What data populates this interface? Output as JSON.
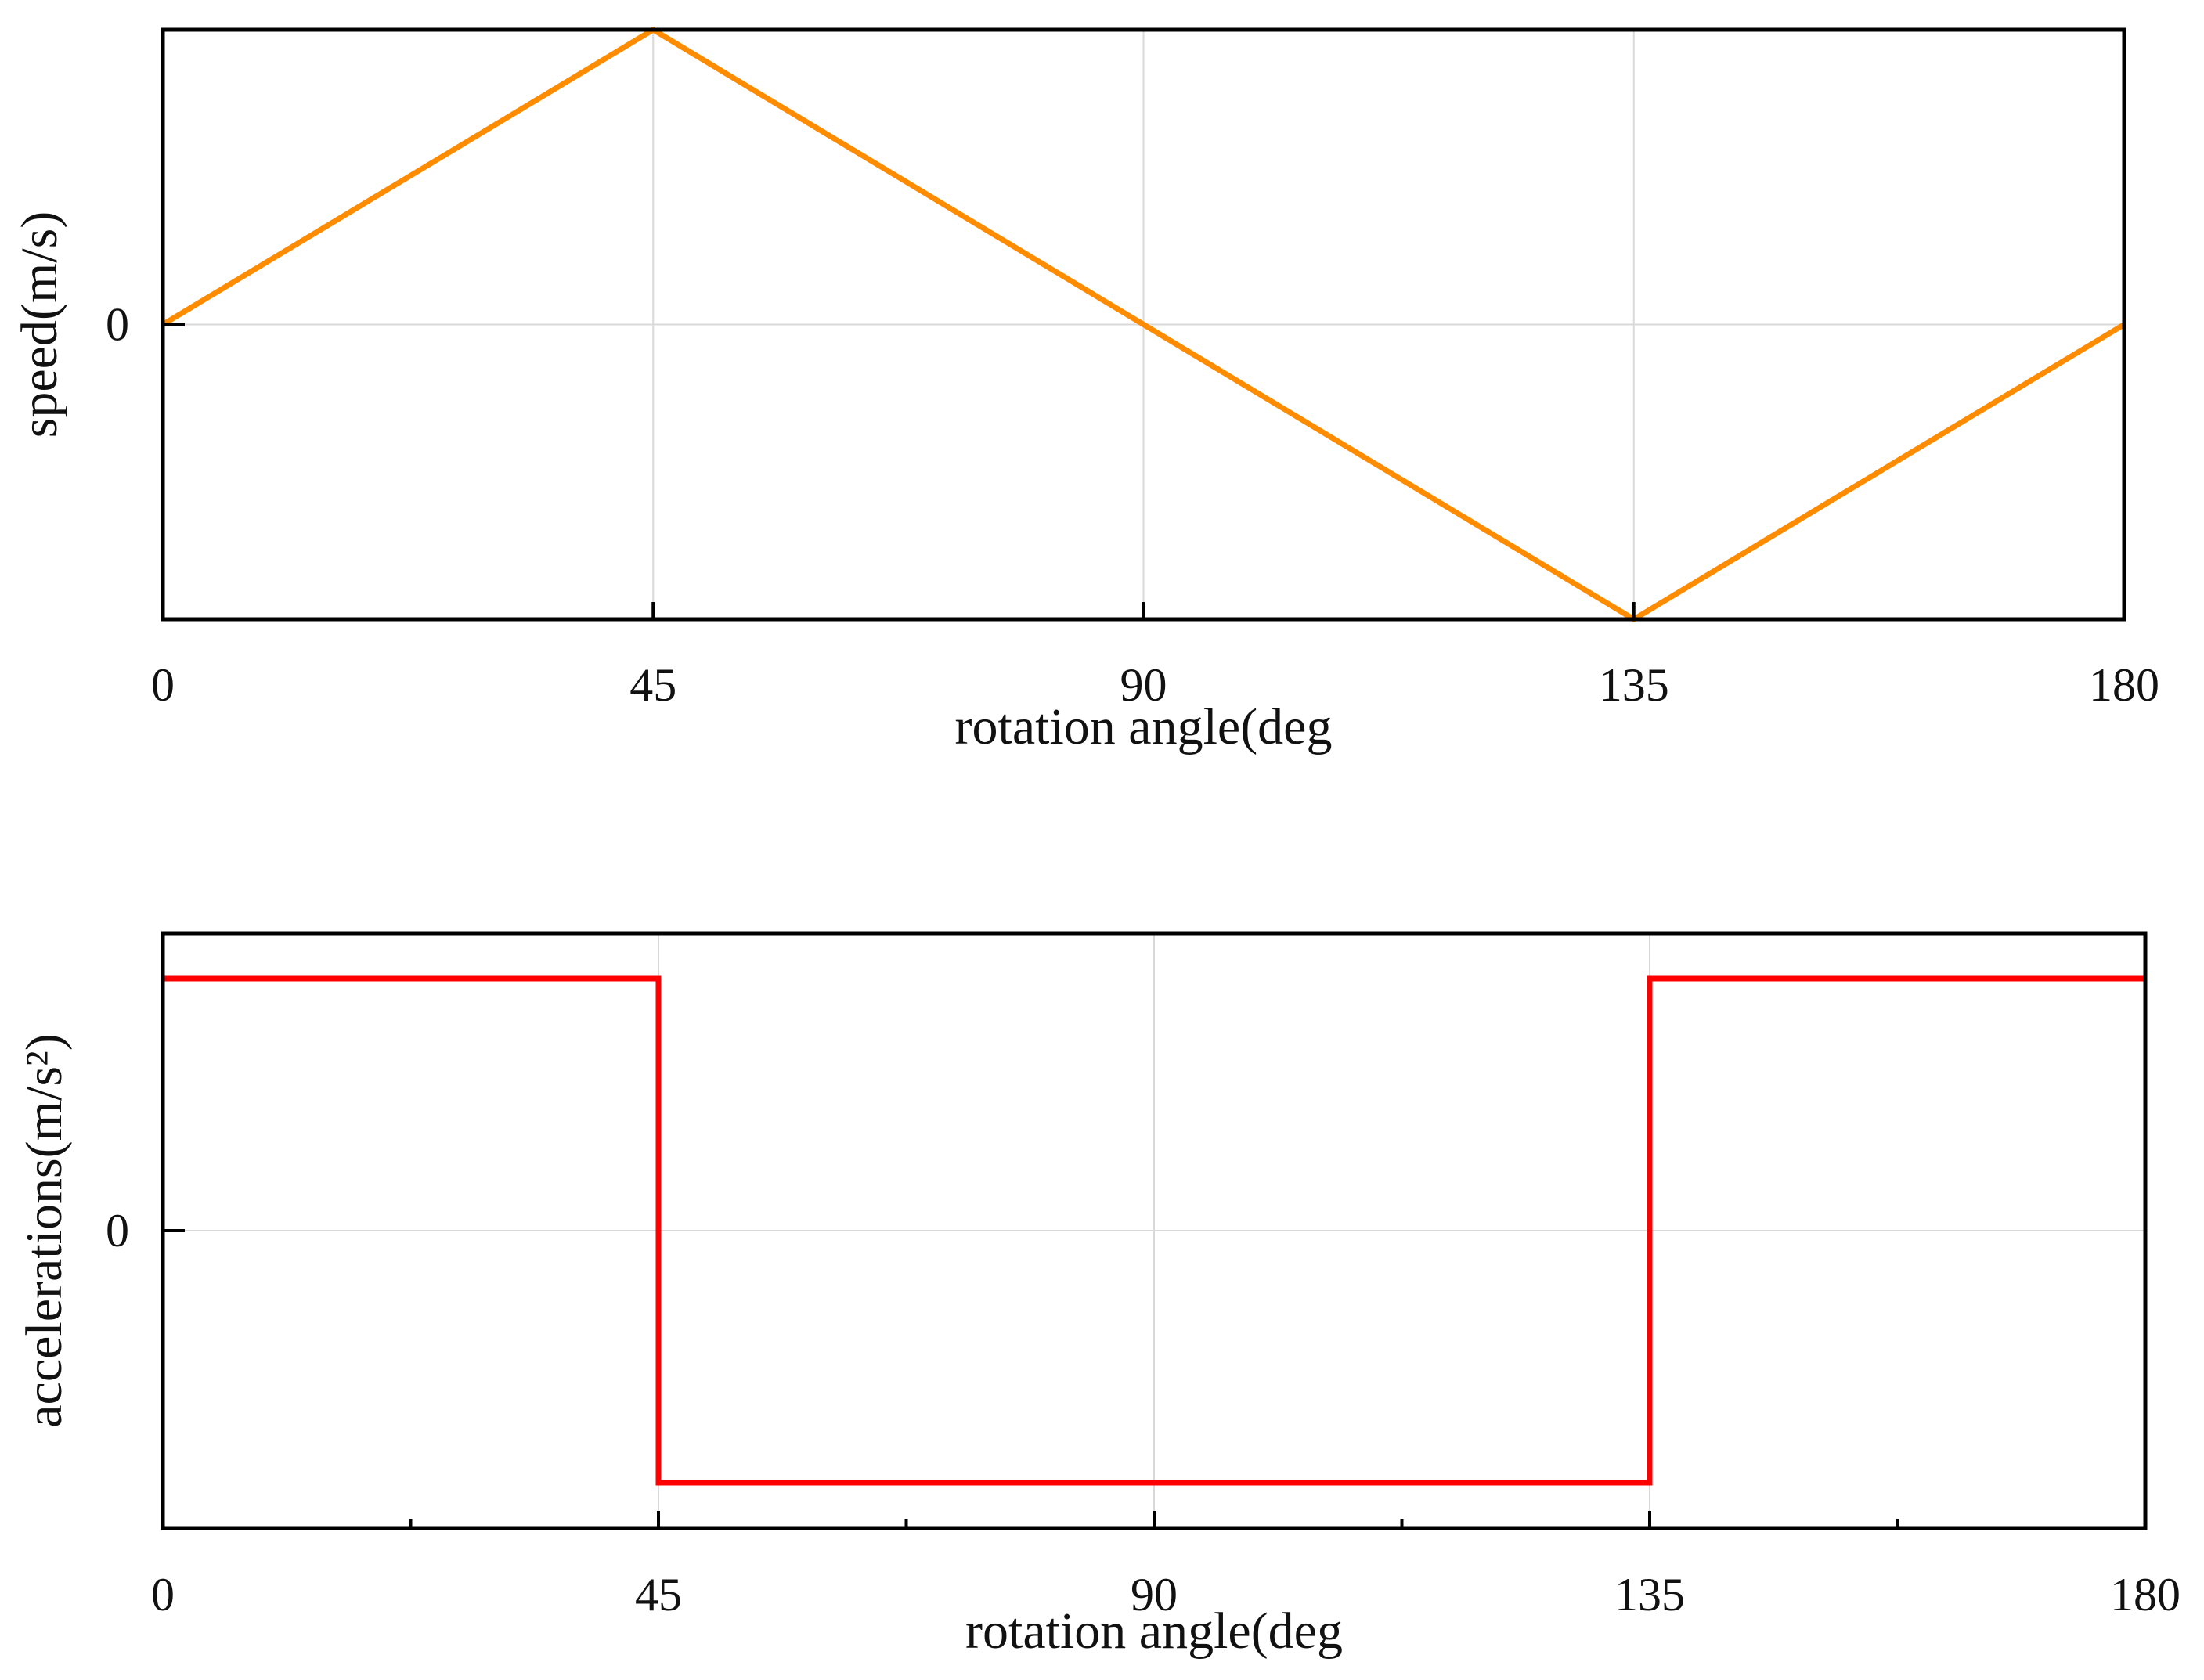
{
  "chart_data": [
    {
      "type": "line",
      "xlabel": "rotation angle(deg",
      "ylabel": "speed(m/s)",
      "xlim": [
        0,
        180
      ],
      "ylim": [
        -1,
        1
      ],
      "x_ticks": [
        "0",
        "45",
        "90",
        "135",
        "180"
      ],
      "y_ticks": [
        "0"
      ],
      "grid": true,
      "series": [
        {
          "color": "#ff8c00",
          "x": [
            0,
            45,
            135,
            180
          ],
          "y": [
            0,
            1,
            -1,
            0
          ]
        }
      ]
    },
    {
      "type": "line",
      "xlabel": "rotation angle(deg",
      "ylabel": "accelerations(m/s²)",
      "xlim": [
        0,
        180
      ],
      "ylim": [
        -1.18,
        1.18
      ],
      "x_ticks": [
        "0",
        "45",
        "90",
        "135",
        "180"
      ],
      "y_ticks": [
        "0"
      ],
      "grid": true,
      "series": [
        {
          "color": "#ff0000",
          "x": [
            0,
            45,
            45,
            135,
            135,
            180
          ],
          "y": [
            1,
            1,
            -1,
            -1,
            1,
            1
          ]
        }
      ]
    }
  ]
}
